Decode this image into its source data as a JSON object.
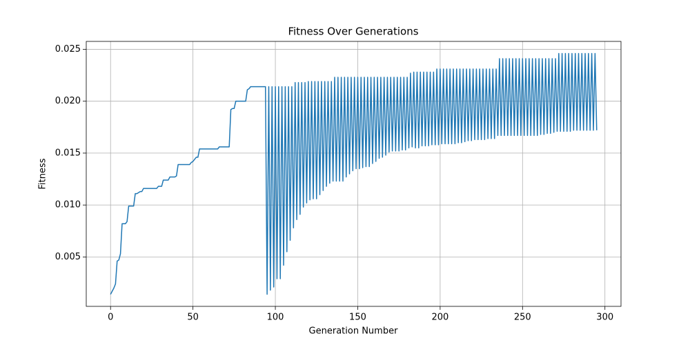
{
  "chart_data": {
    "type": "line",
    "title": "Fitness Over Generations",
    "x_label": "Generation Number",
    "y_label": "Fitness",
    "color": "#1f77b4",
    "grid": true,
    "xlim": [
      -14.75,
      309.75
    ],
    "ylim": [
      0.00024,
      0.02576
    ],
    "xticks": [
      0,
      50,
      100,
      150,
      200,
      250,
      300
    ],
    "yticks": [
      0.005,
      {
        "value": 0.01,
        "label": "0.010"
      },
      0.015,
      {
        "value": 0.02,
        "label": "0.020"
      },
      0.025
    ],
    "x": [
      0,
      1,
      2,
      3,
      4,
      5,
      6,
      7,
      8,
      9,
      10,
      11,
      12,
      13,
      14,
      15,
      16,
      17,
      18,
      19,
      20,
      21,
      22,
      23,
      24,
      25,
      26,
      27,
      28,
      29,
      30,
      31,
      32,
      33,
      34,
      35,
      36,
      37,
      38,
      39,
      40,
      41,
      42,
      43,
      44,
      45,
      46,
      47,
      48,
      49,
      50,
      51,
      52,
      53,
      54,
      55,
      56,
      57,
      58,
      59,
      60,
      61,
      62,
      63,
      64,
      65,
      66,
      67,
      68,
      69,
      70,
      71,
      72,
      73,
      74,
      75,
      76,
      77,
      78,
      79,
      80,
      81,
      82,
      83,
      84,
      85,
      86,
      87,
      88,
      89,
      90,
      91,
      92,
      93,
      94,
      95,
      96,
      97,
      98,
      99,
      100,
      101,
      102,
      103,
      104,
      105,
      106,
      107,
      108,
      109,
      110,
      111,
      112,
      113,
      114,
      115,
      116,
      117,
      118,
      119,
      120,
      121,
      122,
      123,
      124,
      125,
      126,
      127,
      128,
      129,
      130,
      131,
      132,
      133,
      134,
      135,
      136,
      137,
      138,
      139,
      140,
      141,
      142,
      143,
      144,
      145,
      146,
      147,
      148,
      149,
      150,
      151,
      152,
      153,
      154,
      155,
      156,
      157,
      158,
      159,
      160,
      161,
      162,
      163,
      164,
      165,
      166,
      167,
      168,
      169,
      170,
      171,
      172,
      173,
      174,
      175,
      176,
      177,
      178,
      179,
      180,
      181,
      182,
      183,
      184,
      185,
      186,
      187,
      188,
      189,
      190,
      191,
      192,
      193,
      194,
      195,
      196,
      197,
      198,
      199,
      200,
      201,
      202,
      203,
      204,
      205,
      206,
      207,
      208,
      209,
      210,
      211,
      212,
      213,
      214,
      215,
      216,
      217,
      218,
      219,
      220,
      221,
      222,
      223,
      224,
      225,
      226,
      227,
      228,
      229,
      230,
      231,
      232,
      233,
      234,
      235,
      236,
      237,
      238,
      239,
      240,
      241,
      242,
      243,
      244,
      245,
      246,
      247,
      248,
      249,
      250,
      251,
      252,
      253,
      254,
      255,
      256,
      257,
      258,
      259,
      260,
      261,
      262,
      263,
      264,
      265,
      266,
      267,
      268,
      269,
      270,
      271,
      272,
      273,
      274,
      275,
      276,
      277,
      278,
      279,
      280,
      281,
      282,
      283,
      284,
      285,
      286,
      287,
      288,
      289,
      290,
      291,
      292,
      293,
      294,
      295
    ],
    "values": [
      0.0014,
      0.0017,
      0.002,
      0.0024,
      0.0046,
      0.0047,
      0.0053,
      0.0082,
      0.0082,
      0.0082,
      0.0084,
      0.0099,
      0.0099,
      0.0099,
      0.0099,
      0.0111,
      0.0111,
      0.0112,
      0.0113,
      0.0113,
      0.0116,
      0.0116,
      0.0116,
      0.0116,
      0.0116,
      0.0116,
      0.0116,
      0.0116,
      0.0116,
      0.0118,
      0.0118,
      0.0118,
      0.0124,
      0.0124,
      0.0124,
      0.0124,
      0.0127,
      0.0127,
      0.0127,
      0.0127,
      0.0128,
      0.0139,
      0.0139,
      0.0139,
      0.0139,
      0.0139,
      0.0139,
      0.0139,
      0.0139,
      0.0141,
      0.0142,
      0.0144,
      0.0146,
      0.0146,
      0.0154,
      0.0154,
      0.0154,
      0.0154,
      0.0154,
      0.0154,
      0.0154,
      0.0154,
      0.0154,
      0.0154,
      0.0154,
      0.0154,
      0.0156,
      0.0156,
      0.0156,
      0.0156,
      0.0156,
      0.0156,
      0.0156,
      0.0192,
      0.0193,
      0.0193,
      0.02,
      0.02,
      0.02,
      0.02,
      0.02,
      0.02,
      0.02,
      0.0211,
      0.0212,
      0.0214,
      0.0214,
      0.0214,
      0.0214,
      0.0214,
      0.0214,
      0.0214,
      0.0214,
      0.0214,
      0.0214,
      0.0014,
      0.0214,
      0.0018,
      0.0214,
      0.0021,
      0.0214,
      0.0029,
      0.0214,
      0.0029,
      0.0214,
      0.0042,
      0.0214,
      0.0055,
      0.0214,
      0.0066,
      0.0214,
      0.0078,
      0.0218,
      0.0086,
      0.0218,
      0.0091,
      0.0218,
      0.0098,
      0.0218,
      0.0102,
      0.0219,
      0.0105,
      0.0219,
      0.0106,
      0.0219,
      0.0106,
      0.0219,
      0.011,
      0.0219,
      0.0114,
      0.0219,
      0.0118,
      0.0219,
      0.0121,
      0.0219,
      0.0123,
      0.0223,
      0.0123,
      0.0223,
      0.0123,
      0.0223,
      0.0123,
      0.0223,
      0.0127,
      0.0223,
      0.013,
      0.0223,
      0.0133,
      0.0223,
      0.0135,
      0.0223,
      0.0135,
      0.0223,
      0.0136,
      0.0223,
      0.0137,
      0.0223,
      0.0137,
      0.0223,
      0.014,
      0.0223,
      0.0142,
      0.0223,
      0.0145,
      0.0223,
      0.0146,
      0.0223,
      0.0148,
      0.0223,
      0.0151,
      0.0223,
      0.0152,
      0.0223,
      0.0152,
      0.0223,
      0.0152,
      0.0223,
      0.0153,
      0.0223,
      0.0153,
      0.0223,
      0.0155,
      0.0227,
      0.0156,
      0.0228,
      0.0155,
      0.0228,
      0.0155,
      0.0228,
      0.0157,
      0.0228,
      0.0157,
      0.0228,
      0.0157,
      0.0228,
      0.0158,
      0.0228,
      0.0158,
      0.0231,
      0.0158,
      0.0231,
      0.0159,
      0.0231,
      0.0159,
      0.0231,
      0.0159,
      0.0231,
      0.0159,
      0.0231,
      0.0159,
      0.0231,
      0.016,
      0.0231,
      0.016,
      0.0231,
      0.0161,
      0.0231,
      0.0162,
      0.0231,
      0.0162,
      0.0231,
      0.0163,
      0.0231,
      0.0163,
      0.0231,
      0.0163,
      0.0231,
      0.0163,
      0.0231,
      0.0164,
      0.0231,
      0.0164,
      0.0231,
      0.0164,
      0.0231,
      0.0167,
      0.0241,
      0.0167,
      0.0241,
      0.0167,
      0.0241,
      0.0167,
      0.0241,
      0.0167,
      0.0241,
      0.0167,
      0.0241,
      0.0167,
      0.0241,
      0.0167,
      0.0241,
      0.0167,
      0.0241,
      0.0167,
      0.0241,
      0.0167,
      0.0241,
      0.0167,
      0.0241,
      0.0167,
      0.0241,
      0.0168,
      0.0241,
      0.0168,
      0.0241,
      0.0169,
      0.0241,
      0.0169,
      0.0241,
      0.017,
      0.0241,
      0.0171,
      0.0246,
      0.0171,
      0.0246,
      0.0171,
      0.0246,
      0.0171,
      0.0246,
      0.0171,
      0.0246,
      0.0172,
      0.0246,
      0.0172,
      0.0246,
      0.0172,
      0.0246,
      0.0172,
      0.0246,
      0.0172,
      0.0246,
      0.0172,
      0.0246,
      0.0172,
      0.0246,
      0.0172
    ]
  }
}
